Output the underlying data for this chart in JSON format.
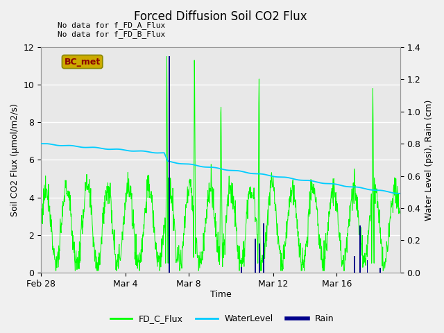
{
  "title": "Forced Diffusion Soil CO2 Flux",
  "xlabel": "Time",
  "ylabel_left": "Soil CO2 Flux (μmol/m2/s)",
  "ylabel_right": "Water Level (psi), Rain (cm)",
  "text_no_data_1": "No data for f_FD_A_Flux",
  "text_no_data_2": "No data for f_FD_B_Flux",
  "bc_met_label": "BC_met",
  "legend_labels": [
    "FD_C_Flux",
    "WaterLevel",
    "Rain"
  ],
  "fd_c_color": "#00ff00",
  "water_color": "#00ccff",
  "rain_color": "#00008b",
  "ylim_left": [
    0,
    12
  ],
  "ylim_right": [
    0.0,
    1.4
  ],
  "fig_bg": "#f0f0f0",
  "plot_bg": "#e8e8e8",
  "xlim": [
    0,
    17
  ],
  "xtick_positions": [
    0,
    4,
    7,
    11,
    14
  ],
  "xtick_labels": [
    "Feb 28",
    "Mar 4",
    "Mar 8",
    "Mar 12",
    "Mar 16"
  ],
  "yticks_left": [
    0,
    2,
    4,
    6,
    8,
    10,
    12
  ],
  "yticks_right": [
    0.0,
    0.2,
    0.4,
    0.6,
    0.8,
    1.0,
    1.2,
    1.4
  ],
  "rain_times": [
    6.08,
    9.5,
    10.15,
    10.35,
    10.55,
    14.85,
    15.1,
    15.45,
    16.05
  ],
  "rain_heights_left": [
    11.5,
    0.28,
    1.8,
    1.55,
    2.6,
    0.9,
    2.5,
    0.65,
    0.25
  ],
  "water_start": 0.8,
  "water_end": 0.51,
  "water_drop_day": 5.9,
  "water_drop_amt": 0.05
}
